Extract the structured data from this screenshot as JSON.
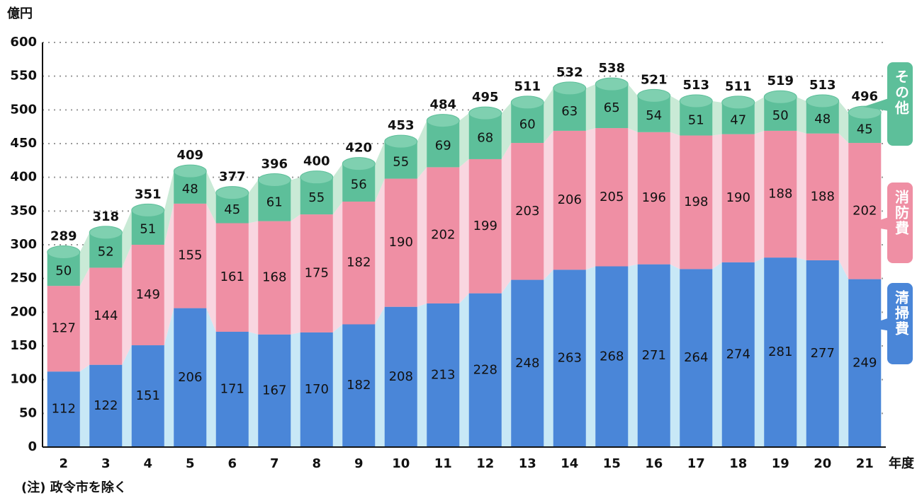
{
  "chart_data": {
    "type": "bar",
    "stacked": true,
    "y_label": "億円",
    "x_label": "年度",
    "note": "(注) 政令市を除く",
    "categories": [
      "2",
      "3",
      "4",
      "5",
      "6",
      "7",
      "8",
      "9",
      "10",
      "11",
      "12",
      "13",
      "14",
      "15",
      "16",
      "17",
      "18",
      "19",
      "20",
      "21"
    ],
    "series": [
      {
        "name": "清掃費",
        "color": "#4a86d8",
        "values": [
          112,
          122,
          151,
          206,
          171,
          167,
          170,
          182,
          208,
          213,
          228,
          248,
          263,
          268,
          271,
          264,
          274,
          281,
          277,
          249
        ]
      },
      {
        "name": "消防費",
        "color": "#ef8fa4",
        "values": [
          127,
          144,
          149,
          155,
          161,
          168,
          175,
          182,
          190,
          202,
          199,
          203,
          206,
          205,
          196,
          198,
          190,
          188,
          188,
          202
        ]
      },
      {
        "name": "その他",
        "color": "#5dbf9a",
        "values": [
          50,
          52,
          51,
          48,
          45,
          61,
          55,
          56,
          55,
          69,
          68,
          60,
          63,
          65,
          54,
          51,
          47,
          50,
          48,
          45
        ]
      }
    ],
    "totals": [
      289,
      318,
      351,
      409,
      377,
      396,
      400,
      420,
      453,
      484,
      495,
      511,
      532,
      538,
      521,
      513,
      511,
      519,
      513,
      496
    ],
    "ylim": [
      0,
      600
    ],
    "yticks": [
      0,
      50,
      100,
      150,
      200,
      250,
      300,
      350,
      400,
      450,
      500,
      550,
      600
    ],
    "grid": true
  }
}
